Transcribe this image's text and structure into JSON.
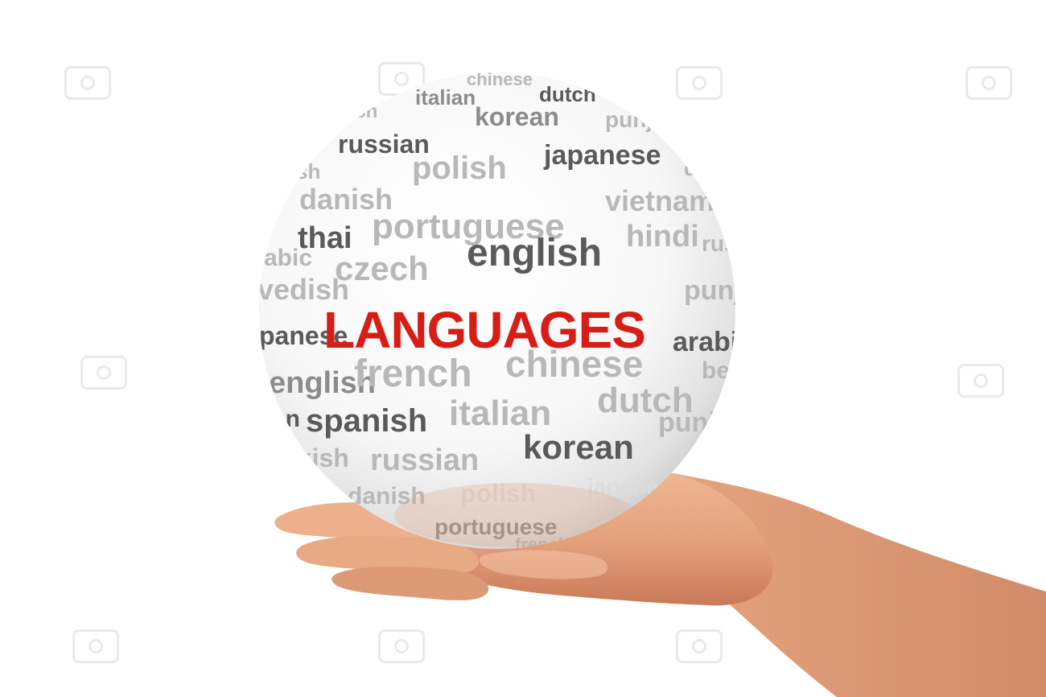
{
  "image": {
    "headline": "LANGUAGES",
    "headline_color": "#d71e16",
    "word_color_dark": "#5a5a5a",
    "word_color_mid": "#8c8c8c",
    "word_color_light": "#b8b8b8",
    "skin_color": "#e5a07d",
    "words": {
      "chinese_top": "chinese",
      "italian_top": "italian",
      "dutch_top": "dutch",
      "english_top": "nish",
      "russian_top": "russian",
      "korean_top": "korean",
      "punjabi_top": "punj",
      "sh_top": "sh",
      "polish_top": "polish",
      "japanese_top": "japanese",
      "d_top": "d",
      "danish_top": "danish",
      "portuguese_top": "portuguese",
      "vietnamese_top": "vietnam",
      "abic": "abic",
      "thai": "thai",
      "english_mid": "english",
      "hindi": "hindi",
      "rus_right": "rus",
      "swedish": "vedish",
      "czech": "czech",
      "punjabi_right": "punja",
      "japanese_left": "panese",
      "arabic": "arabic",
      "english_left": "english",
      "french": "french",
      "chinese_mid": "chinese",
      "bengali": "beng",
      "an_left": "an",
      "spanish": "spanish",
      "italian_mid": "italian",
      "dutch_mid": "dutch",
      "punjabi_low": "punjab",
      "ekish": "ekish",
      "russian_low": "russian",
      "korean_low": "korean",
      "danish_low": "danish",
      "polish_low": "polish",
      "japanese_low": "japanese",
      "portuguese_low": "portuguese",
      "french_low": "french"
    }
  }
}
